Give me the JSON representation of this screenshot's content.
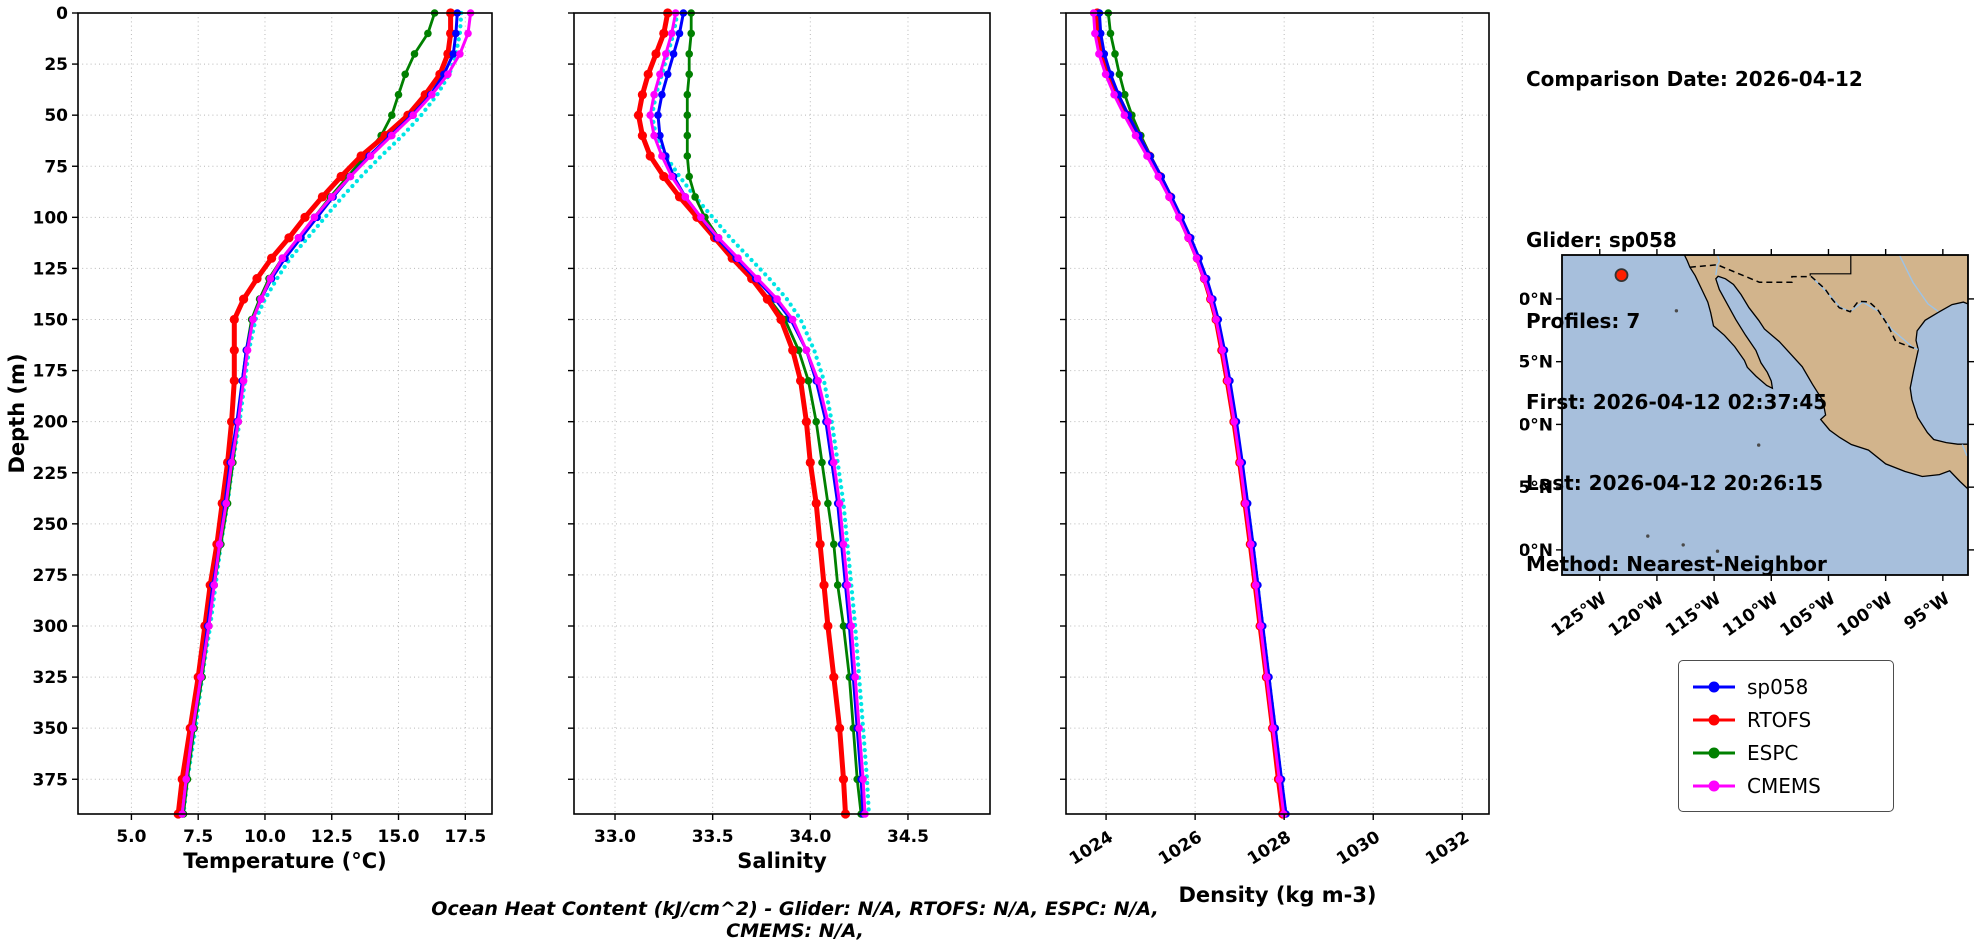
{
  "info_panel": {
    "title": "Comparison Date: 2026-04-12",
    "lines": [
      "Glider: sp058",
      "Profiles: 7",
      "First: 2026-04-12 02:37:45",
      "Last: 2026-04-12 20:26:15",
      "Method: Nearest-Neighbor"
    ]
  },
  "footer": "Ocean Heat Content (kJ/cm^2) - Glider: N/A,  RTOFS: N/A,  ESPC: N/A,  CMEMS: N/A,",
  "legend": {
    "items": [
      {
        "label": "sp058",
        "color": "#0000ff"
      },
      {
        "label": "RTOFS",
        "color": "#ff0000"
      },
      {
        "label": "ESPC",
        "color": "#008000"
      },
      {
        "label": "CMEMS",
        "color": "#ff00ff"
      }
    ]
  },
  "chart_data": [
    {
      "type": "line",
      "xlabel": "Temperature (°C)",
      "ylabel": "Depth (m)",
      "xlim": [
        3.0,
        18.5
      ],
      "ylim": [
        0,
        392
      ],
      "xticks": [
        5.0,
        7.5,
        10.0,
        12.5,
        15.0,
        17.5
      ],
      "xtick_labels": [
        "5.0",
        "7.5",
        "10.0",
        "12.5",
        "15.0",
        "17.5"
      ],
      "yticks": [
        0,
        25,
        50,
        75,
        100,
        125,
        150,
        175,
        200,
        225,
        250,
        275,
        300,
        325,
        350,
        375
      ],
      "grid": true,
      "depths": [
        0,
        10,
        20,
        30,
        40,
        50,
        60,
        70,
        80,
        90,
        100,
        110,
        120,
        130,
        140,
        150,
        165,
        180,
        200,
        220,
        240,
        260,
        280,
        300,
        325,
        350,
        375,
        392
      ],
      "series": [
        {
          "name": "glider-profiles",
          "color": "#00e5e5",
          "style": "dotted",
          "lw": 4.2,
          "values": [
            17.35,
            17.3,
            17.15,
            16.9,
            16.45,
            15.85,
            15.15,
            14.35,
            13.6,
            12.9,
            12.25,
            11.6,
            10.95,
            10.45,
            10.0,
            9.65,
            9.4,
            9.25,
            9.05,
            8.8,
            8.6,
            8.35,
            8.15,
            7.95,
            7.65,
            7.4,
            7.1,
            6.95
          ]
        },
        {
          "name": "ESPC",
          "color": "#008000",
          "style": "line-marker",
          "lw": 2.8,
          "values": [
            16.35,
            16.1,
            15.6,
            15.25,
            15.0,
            14.75,
            14.35,
            13.75,
            13.1,
            12.45,
            11.85,
            11.25,
            10.65,
            10.15,
            9.8,
            9.5,
            9.3,
            9.15,
            9.0,
            8.8,
            8.6,
            8.35,
            8.1,
            7.9,
            7.65,
            7.35,
            7.1,
            6.95
          ]
        },
        {
          "name": "RTOFS",
          "color": "#ff0000",
          "style": "line-marker",
          "lw": 5,
          "values": [
            16.95,
            16.95,
            16.85,
            16.55,
            16.0,
            15.35,
            14.5,
            13.6,
            12.85,
            12.15,
            11.5,
            10.9,
            10.25,
            9.7,
            9.2,
            8.85,
            8.85,
            8.85,
            8.75,
            8.6,
            8.4,
            8.2,
            7.95,
            7.75,
            7.5,
            7.2,
            6.9,
            6.75
          ]
        },
        {
          "name": "sp058",
          "color": "#0000ff",
          "style": "line-marker",
          "lw": 3,
          "values": [
            17.2,
            17.15,
            17.05,
            16.7,
            16.2,
            15.5,
            14.7,
            13.9,
            13.2,
            12.55,
            11.95,
            11.35,
            10.75,
            10.25,
            9.85,
            9.55,
            9.3,
            9.15,
            8.95,
            8.7,
            8.5,
            8.3,
            8.05,
            7.85,
            7.6,
            7.3,
            7.05,
            6.9
          ]
        },
        {
          "name": "CMEMS",
          "color": "#ff00ff",
          "style": "line-marker",
          "lw": 3,
          "values": [
            17.7,
            17.6,
            17.3,
            16.85,
            16.25,
            15.55,
            14.75,
            13.95,
            13.2,
            12.5,
            11.85,
            11.25,
            10.65,
            10.2,
            9.85,
            9.55,
            9.35,
            9.2,
            9.0,
            8.75,
            8.55,
            8.3,
            8.1,
            7.9,
            7.6,
            7.3,
            7.05,
            6.9
          ]
        }
      ]
    },
    {
      "type": "line",
      "xlabel": "Salinity",
      "ylabel": "",
      "xlim": [
        32.79,
        34.92
      ],
      "ylim": [
        0,
        392
      ],
      "xticks": [
        33.0,
        33.5,
        34.0,
        34.5
      ],
      "xtick_labels": [
        "33.0",
        "33.5",
        "34.0",
        "34.5"
      ],
      "yticks": [
        0,
        25,
        50,
        75,
        100,
        125,
        150,
        175,
        200,
        225,
        250,
        275,
        300,
        325,
        350,
        375
      ],
      "grid": true,
      "depths": [
        0,
        10,
        20,
        30,
        40,
        50,
        60,
        70,
        80,
        90,
        100,
        110,
        120,
        130,
        140,
        150,
        165,
        180,
        200,
        220,
        240,
        260,
        280,
        300,
        325,
        350,
        375,
        392
      ],
      "series": [
        {
          "name": "glider-profiles",
          "color": "#00e5e5",
          "style": "dotted",
          "lw": 4.2,
          "values": [
            33.32,
            33.3,
            33.27,
            33.24,
            33.21,
            33.19,
            33.21,
            33.26,
            33.33,
            33.41,
            33.5,
            33.59,
            33.69,
            33.79,
            33.88,
            33.95,
            34.02,
            34.07,
            34.11,
            34.14,
            34.17,
            34.19,
            34.21,
            34.23,
            34.25,
            34.27,
            34.29,
            34.3
          ]
        },
        {
          "name": "ESPC",
          "color": "#008000",
          "style": "line-marker",
          "lw": 2.8,
          "values": [
            33.39,
            33.39,
            33.38,
            33.38,
            33.37,
            33.37,
            33.37,
            33.37,
            33.38,
            33.41,
            33.46,
            33.53,
            33.61,
            33.7,
            33.79,
            33.87,
            33.94,
            33.99,
            34.03,
            34.06,
            34.09,
            34.12,
            34.14,
            34.17,
            34.2,
            34.22,
            34.24,
            34.26
          ]
        },
        {
          "name": "RTOFS",
          "color": "#ff0000",
          "style": "line-marker",
          "lw": 5,
          "values": [
            33.27,
            33.25,
            33.21,
            33.17,
            33.14,
            33.12,
            33.14,
            33.18,
            33.25,
            33.33,
            33.42,
            33.51,
            33.6,
            33.7,
            33.78,
            33.85,
            33.91,
            33.95,
            33.98,
            34.0,
            34.03,
            34.05,
            34.07,
            34.09,
            34.12,
            34.15,
            34.17,
            34.18
          ]
        },
        {
          "name": "sp058",
          "color": "#0000ff",
          "style": "line-marker",
          "lw": 3,
          "values": [
            33.35,
            33.33,
            33.3,
            33.27,
            33.24,
            33.22,
            33.23,
            33.26,
            33.3,
            33.36,
            33.44,
            33.52,
            33.62,
            33.72,
            33.82,
            33.9,
            33.98,
            34.03,
            34.08,
            34.11,
            34.14,
            34.16,
            34.18,
            34.2,
            34.22,
            34.24,
            34.26,
            34.27
          ]
        },
        {
          "name": "CMEMS",
          "color": "#ff00ff",
          "style": "line-marker",
          "lw": 3,
          "values": [
            33.31,
            33.29,
            33.26,
            33.23,
            33.2,
            33.18,
            33.2,
            33.24,
            33.29,
            33.36,
            33.44,
            33.53,
            33.63,
            33.73,
            33.83,
            33.91,
            33.98,
            34.04,
            34.09,
            34.12,
            34.15,
            34.17,
            34.19,
            34.21,
            34.23,
            34.25,
            34.27,
            34.28
          ]
        }
      ]
    },
    {
      "type": "line",
      "xlabel": "Density (kg m-3)",
      "ylabel": "",
      "xlim": [
        1023.1,
        1032.6
      ],
      "ylim": [
        0,
        392
      ],
      "xticks": [
        1024,
        1026,
        1028,
        1030,
        1032
      ],
      "xtick_labels": [
        "1024",
        "1026",
        "1028",
        "1030",
        "1032"
      ],
      "yticks": [
        0,
        25,
        50,
        75,
        100,
        125,
        150,
        175,
        200,
        225,
        250,
        275,
        300,
        325,
        350,
        375
      ],
      "grid": true,
      "depths": [
        0,
        10,
        20,
        30,
        40,
        50,
        60,
        70,
        80,
        90,
        100,
        110,
        120,
        130,
        140,
        150,
        165,
        180,
        200,
        220,
        240,
        260,
        280,
        300,
        325,
        350,
        375,
        392
      ],
      "series": [
        {
          "name": "glider-profiles",
          "color": "#00e5e5",
          "style": "dotted",
          "lw": 4.2,
          "values": [
            1023.8,
            1023.83,
            1023.91,
            1024.04,
            1024.22,
            1024.44,
            1024.68,
            1024.94,
            1025.19,
            1025.43,
            1025.65,
            1025.86,
            1026.06,
            1026.23,
            1026.38,
            1026.5,
            1026.64,
            1026.76,
            1026.91,
            1027.04,
            1027.17,
            1027.29,
            1027.4,
            1027.51,
            1027.65,
            1027.79,
            1027.93,
            1028.03
          ]
        },
        {
          "name": "ESPC",
          "color": "#008000",
          "style": "line-marker",
          "lw": 2.8,
          "values": [
            1024.05,
            1024.1,
            1024.2,
            1024.3,
            1024.42,
            1024.58,
            1024.78,
            1025.0,
            1025.24,
            1025.46,
            1025.67,
            1025.87,
            1026.06,
            1026.23,
            1026.37,
            1026.49,
            1026.63,
            1026.75,
            1026.9,
            1027.03,
            1027.15,
            1027.27,
            1027.38,
            1027.49,
            1027.63,
            1027.77,
            1027.91,
            1028.01
          ]
        },
        {
          "name": "RTOFS",
          "color": "#ff0000",
          "style": "line-marker",
          "lw": 5,
          "values": [
            1023.8,
            1023.83,
            1023.92,
            1024.06,
            1024.25,
            1024.48,
            1024.72,
            1024.97,
            1025.21,
            1025.44,
            1025.66,
            1025.86,
            1026.05,
            1026.21,
            1026.35,
            1026.47,
            1026.6,
            1026.72,
            1026.87,
            1027.0,
            1027.12,
            1027.24,
            1027.35,
            1027.46,
            1027.6,
            1027.74,
            1027.87,
            1027.97
          ]
        },
        {
          "name": "sp058",
          "color": "#0000ff",
          "style": "line-marker",
          "lw": 3,
          "values": [
            1023.85,
            1023.88,
            1023.96,
            1024.1,
            1024.28,
            1024.5,
            1024.74,
            1024.99,
            1025.24,
            1025.47,
            1025.69,
            1025.9,
            1026.09,
            1026.26,
            1026.4,
            1026.52,
            1026.66,
            1026.78,
            1026.93,
            1027.06,
            1027.18,
            1027.3,
            1027.41,
            1027.52,
            1027.66,
            1027.8,
            1027.94,
            1028.04
          ]
        },
        {
          "name": "CMEMS",
          "color": "#ff00ff",
          "style": "line-marker",
          "lw": 3,
          "values": [
            1023.72,
            1023.75,
            1023.84,
            1023.99,
            1024.18,
            1024.41,
            1024.66,
            1024.92,
            1025.17,
            1025.41,
            1025.63,
            1025.84,
            1026.03,
            1026.2,
            1026.35,
            1026.47,
            1026.61,
            1026.73,
            1026.88,
            1027.01,
            1027.13,
            1027.25,
            1027.36,
            1027.47,
            1027.61,
            1027.75,
            1027.89,
            1027.99
          ]
        }
      ]
    }
  ],
  "map": {
    "extent": {
      "lon_min": -128.3,
      "lon_max": -92.8,
      "lat_min": 8.0,
      "lat_max": 33.5
    },
    "xticks": [
      -125,
      -120,
      -115,
      -110,
      -105,
      -100,
      -95
    ],
    "xtick_labels": [
      "125°W",
      "120°W",
      "115°W",
      "110°W",
      "105°W",
      "100°W",
      "95°W"
    ],
    "yticks": [
      10,
      15,
      20,
      25,
      30
    ],
    "ytick_labels": [
      "10°N",
      "15°N",
      "20°N",
      "25°N",
      "30°N"
    ],
    "marker": {
      "lon": -123.1,
      "lat": 31.9,
      "color": "#ff2000",
      "edge": "#333333"
    },
    "ocean_color": "#a7bfdc",
    "land_color": "#d2b48c"
  }
}
